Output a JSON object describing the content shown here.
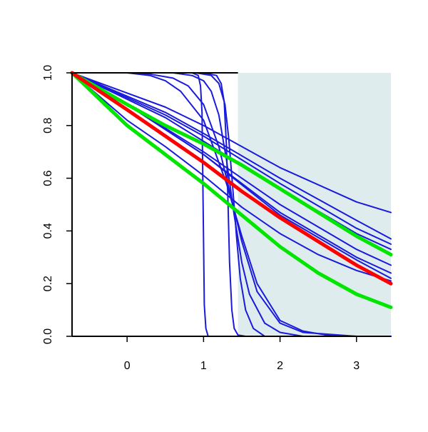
{
  "chart_data": {
    "type": "line",
    "title": "",
    "xlabel": "",
    "ylabel": "",
    "xlim": [
      -0.72,
      3.45
    ],
    "ylim": [
      0.0,
      1.0
    ],
    "grid": false,
    "legend": "none",
    "x_ticks": [
      0,
      1,
      2,
      3
    ],
    "x_tick_labels": [
      "0",
      "1",
      "2",
      "3"
    ],
    "y_ticks": [
      0.0,
      0.2,
      0.4,
      0.6,
      0.8,
      1.0
    ],
    "y_tick_labels": [
      "0.0",
      "0.2",
      "0.4",
      "0.6",
      "0.8",
      "1.0"
    ],
    "shaded_region": {
      "x_from": 1.45,
      "x_to": 3.45,
      "color": "#dfeced"
    },
    "colors": {
      "blue": "#1a1adc",
      "red": "#ff0000",
      "green": "#00e600",
      "axis": "#000000"
    },
    "series": [
      {
        "color": "#1a1adc",
        "width": 2,
        "points": [
          [
            -0.72,
            1.0
          ],
          [
            0.5,
            0.87
          ],
          [
            1.0,
            0.8
          ],
          [
            2.0,
            0.64
          ],
          [
            3.0,
            0.51
          ],
          [
            3.45,
            0.47
          ]
        ]
      },
      {
        "color": "#1a1adc",
        "width": 2,
        "points": [
          [
            -0.72,
            1.0
          ],
          [
            0.5,
            0.85
          ],
          [
            1.0,
            0.77
          ],
          [
            2.0,
            0.6
          ],
          [
            3.0,
            0.44
          ],
          [
            3.45,
            0.37
          ]
        ]
      },
      {
        "color": "#1a1adc",
        "width": 2,
        "points": [
          [
            -0.72,
            1.0
          ],
          [
            0.5,
            0.84
          ],
          [
            1.0,
            0.76
          ],
          [
            2.0,
            0.58
          ],
          [
            3.0,
            0.41
          ],
          [
            3.45,
            0.35
          ]
        ]
      },
      {
        "color": "#1a1adc",
        "width": 2,
        "points": [
          [
            -0.72,
            1.0
          ],
          [
            0.5,
            0.83
          ],
          [
            1.0,
            0.74
          ],
          [
            2.0,
            0.56
          ],
          [
            3.0,
            0.39
          ],
          [
            3.45,
            0.33
          ]
        ]
      },
      {
        "color": "#1a1adc",
        "width": 2,
        "points": [
          [
            -0.72,
            1.0
          ],
          [
            0.0,
            0.88
          ],
          [
            1.0,
            0.7
          ],
          [
            2.0,
            0.5
          ],
          [
            3.0,
            0.33
          ],
          [
            3.45,
            0.27
          ]
        ]
      },
      {
        "color": "#1a1adc",
        "width": 2,
        "points": [
          [
            -0.72,
            1.0
          ],
          [
            0.0,
            0.88
          ],
          [
            1.0,
            0.69
          ],
          [
            2.0,
            0.47
          ],
          [
            3.0,
            0.3
          ],
          [
            3.45,
            0.24
          ]
        ]
      },
      {
        "color": "#1a1adc",
        "width": 2,
        "points": [
          [
            -0.72,
            1.0
          ],
          [
            0.0,
            0.88
          ],
          [
            1.0,
            0.69
          ],
          [
            2.0,
            0.46
          ],
          [
            3.0,
            0.29
          ],
          [
            3.45,
            0.22
          ]
        ]
      },
      {
        "color": "#1a1adc",
        "width": 2,
        "points": [
          [
            -0.72,
            1.0
          ],
          [
            0.0,
            0.82
          ],
          [
            0.5,
            0.72
          ],
          [
            1.0,
            0.61
          ],
          [
            1.5,
            0.49
          ],
          [
            2.0,
            0.39
          ],
          [
            2.5,
            0.31
          ],
          [
            3.0,
            0.25
          ],
          [
            3.45,
            0.21
          ]
        ]
      },
      {
        "color": "#1a1adc",
        "width": 2,
        "points": [
          [
            -0.72,
            1.0
          ],
          [
            0.0,
            1.0
          ],
          [
            0.3,
            0.99
          ],
          [
            0.5,
            0.97
          ],
          [
            0.7,
            0.93
          ],
          [
            1.0,
            0.82
          ],
          [
            1.2,
            0.66
          ],
          [
            1.3,
            0.58
          ],
          [
            1.5,
            0.38
          ],
          [
            1.7,
            0.2
          ],
          [
            2.0,
            0.06
          ],
          [
            2.3,
            0.02
          ],
          [
            2.6,
            0.005
          ],
          [
            3.0,
            0.0
          ],
          [
            3.45,
            0.0
          ]
        ]
      },
      {
        "color": "#1a1adc",
        "width": 2,
        "points": [
          [
            -0.72,
            1.0
          ],
          [
            0.0,
            1.0
          ],
          [
            0.3,
            0.995
          ],
          [
            0.6,
            0.98
          ],
          [
            0.8,
            0.95
          ],
          [
            1.0,
            0.88
          ],
          [
            1.2,
            0.72
          ],
          [
            1.3,
            0.6
          ],
          [
            1.5,
            0.36
          ],
          [
            1.7,
            0.17
          ],
          [
            2.0,
            0.05
          ],
          [
            2.3,
            0.015
          ],
          [
            3.0,
            0.0
          ],
          [
            3.45,
            0.0
          ]
        ]
      },
      {
        "color": "#1a1adc",
        "width": 2,
        "points": [
          [
            -0.72,
            1.0
          ],
          [
            0.6,
            1.0
          ],
          [
            0.85,
            0.99
          ],
          [
            1.0,
            0.97
          ],
          [
            1.1,
            0.93
          ],
          [
            1.2,
            0.84
          ],
          [
            1.3,
            0.67
          ],
          [
            1.4,
            0.46
          ],
          [
            1.5,
            0.28
          ],
          [
            1.6,
            0.16
          ],
          [
            1.8,
            0.05
          ],
          [
            2.0,
            0.015
          ],
          [
            2.3,
            0.0
          ],
          [
            3.45,
            0.0
          ]
        ]
      },
      {
        "color": "#1a1adc",
        "width": 2,
        "points": [
          [
            -0.72,
            1.0
          ],
          [
            0.9,
            1.0
          ],
          [
            1.1,
            0.99
          ],
          [
            1.2,
            0.96
          ],
          [
            1.28,
            0.88
          ],
          [
            1.33,
            0.75
          ],
          [
            1.38,
            0.57
          ],
          [
            1.43,
            0.38
          ],
          [
            1.48,
            0.22
          ],
          [
            1.55,
            0.1
          ],
          [
            1.65,
            0.03
          ],
          [
            1.8,
            0.0
          ],
          [
            3.45,
            0.0
          ]
        ]
      },
      {
        "color": "#1a1adc",
        "width": 2,
        "points": [
          [
            -0.72,
            1.0
          ],
          [
            1.0,
            1.0
          ],
          [
            1.17,
            0.99
          ],
          [
            1.23,
            0.96
          ],
          [
            1.27,
            0.89
          ],
          [
            1.3,
            0.72
          ],
          [
            1.32,
            0.5
          ],
          [
            1.34,
            0.28
          ],
          [
            1.37,
            0.1
          ],
          [
            1.4,
            0.03
          ],
          [
            1.45,
            0.005
          ],
          [
            1.55,
            0.0
          ],
          [
            3.45,
            0.0
          ]
        ]
      },
      {
        "color": "#1a1adc",
        "width": 2,
        "points": [
          [
            -0.72,
            1.0
          ],
          [
            0.85,
            1.0
          ],
          [
            0.93,
            0.99
          ],
          [
            0.96,
            0.95
          ],
          [
            0.98,
            0.85
          ],
          [
            0.99,
            0.6
          ],
          [
            1.0,
            0.35
          ],
          [
            1.01,
            0.12
          ],
          [
            1.03,
            0.03
          ],
          [
            1.06,
            0.0
          ],
          [
            3.45,
            0.0
          ]
        ]
      },
      {
        "color": "#00e600",
        "width": 5,
        "points": [
          [
            -0.72,
            1.0
          ],
          [
            0.0,
            0.88
          ],
          [
            0.5,
            0.8
          ],
          [
            1.0,
            0.73
          ],
          [
            1.5,
            0.65
          ],
          [
            2.0,
            0.56
          ],
          [
            2.5,
            0.47
          ],
          [
            3.0,
            0.38
          ],
          [
            3.45,
            0.31
          ]
        ]
      },
      {
        "color": "#00e600",
        "width": 5,
        "points": [
          [
            -0.72,
            1.0
          ],
          [
            0.0,
            0.8
          ],
          [
            0.5,
            0.69
          ],
          [
            1.0,
            0.58
          ],
          [
            1.5,
            0.46
          ],
          [
            2.0,
            0.34
          ],
          [
            2.5,
            0.24
          ],
          [
            3.0,
            0.16
          ],
          [
            3.45,
            0.11
          ]
        ]
      },
      {
        "color": "#ff0000",
        "width": 5,
        "points": [
          [
            -0.72,
            1.0
          ],
          [
            0.0,
            0.86
          ],
          [
            0.5,
            0.76
          ],
          [
            1.0,
            0.66
          ],
          [
            1.5,
            0.55
          ],
          [
            2.0,
            0.45
          ],
          [
            2.5,
            0.36
          ],
          [
            3.0,
            0.27
          ],
          [
            3.45,
            0.2
          ]
        ]
      }
    ]
  }
}
